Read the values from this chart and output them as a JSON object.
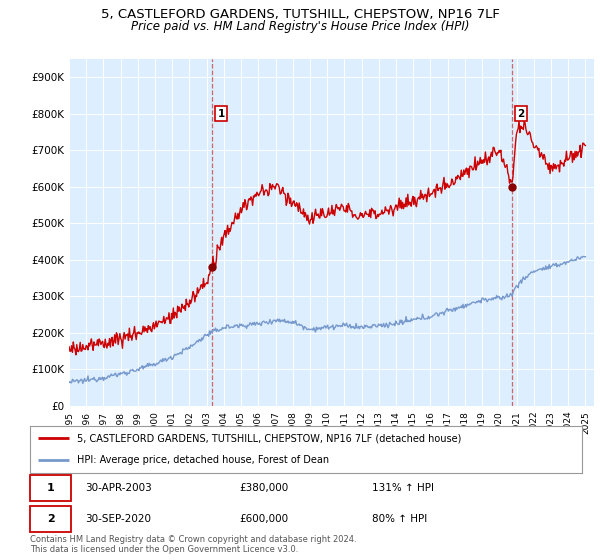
{
  "title_line1": "5, CASTLEFORD GARDENS, TUTSHILL, CHEPSTOW, NP16 7LF",
  "title_line2": "Price paid vs. HM Land Registry's House Price Index (HPI)",
  "ylim": [
    0,
    950000
  ],
  "yticks": [
    0,
    100000,
    200000,
    300000,
    400000,
    500000,
    600000,
    700000,
    800000,
    900000
  ],
  "ytick_labels": [
    "£0",
    "£100K",
    "£200K",
    "£300K",
    "£400K",
    "£500K",
    "£600K",
    "£700K",
    "£800K",
    "£900K"
  ],
  "background_color": "#ffffff",
  "chart_bg_color": "#ddeeff",
  "grid_color": "#ffffff",
  "sale1_date_x": 2003.33,
  "sale1_price": 380000,
  "sale2_date_x": 2020.75,
  "sale2_price": 600000,
  "red_line_color": "#cc0000",
  "blue_line_color": "#7799cc",
  "legend_label1": "5, CASTLEFORD GARDENS, TUTSHILL, CHEPSTOW, NP16 7LF (detached house)",
  "legend_label2": "HPI: Average price, detached house, Forest of Dean",
  "annotation1_num": "1",
  "annotation1_date": "30-APR-2003",
  "annotation1_price": "£380,000",
  "annotation1_hpi": "131% ↑ HPI",
  "annotation2_num": "2",
  "annotation2_date": "30-SEP-2020",
  "annotation2_price": "£600,000",
  "annotation2_hpi": "80% ↑ HPI",
  "footer_text": "Contains HM Land Registry data © Crown copyright and database right 2024.\nThis data is licensed under the Open Government Licence v3.0.",
  "xmin": 1995,
  "xmax": 2025.5
}
